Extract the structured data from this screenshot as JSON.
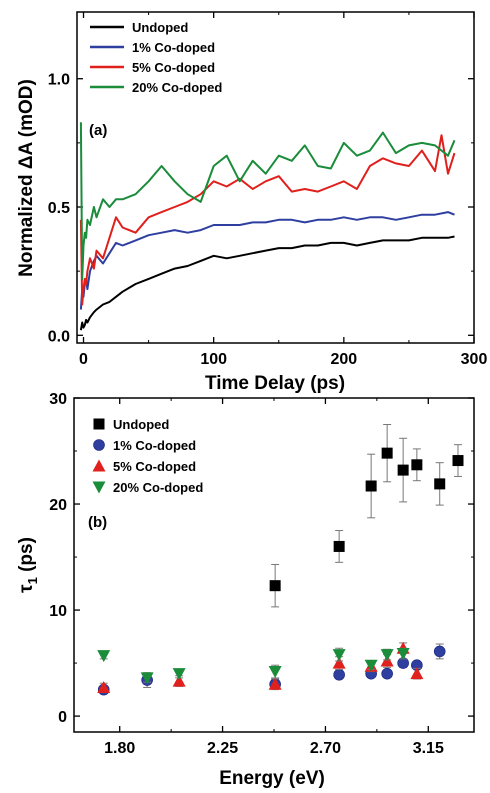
{
  "chart_data": [
    {
      "type": "line",
      "panel_label": "(a)",
      "xlabel": "Time Delay (ps)",
      "ylabel": "Normalized ΔA (mOD)",
      "xlim": [
        -5,
        300
      ],
      "ylim": [
        -0.03,
        1.26
      ],
      "xticks": [
        0,
        100,
        200,
        300
      ],
      "xtick_labels": [
        "0",
        "100",
        "200",
        "300"
      ],
      "yticks": [
        0.0,
        0.5,
        1.0
      ],
      "ytick_labels": [
        "0.0",
        "0.5",
        "1.0"
      ],
      "legend_position": "top-left",
      "series": [
        {
          "name": "Undoped",
          "color": "#000000",
          "x": [
            -2,
            -1,
            0,
            1,
            2,
            3,
            5,
            8,
            10,
            15,
            20,
            25,
            30,
            40,
            50,
            60,
            70,
            80,
            90,
            100,
            110,
            120,
            130,
            140,
            150,
            160,
            170,
            180,
            190,
            200,
            210,
            220,
            230,
            240,
            250,
            260,
            270,
            280,
            285
          ],
          "y": [
            0.02,
            0.05,
            0.03,
            0.04,
            0.06,
            0.05,
            0.07,
            0.09,
            0.1,
            0.12,
            0.13,
            0.15,
            0.17,
            0.2,
            0.22,
            0.24,
            0.26,
            0.27,
            0.29,
            0.31,
            0.3,
            0.31,
            0.32,
            0.33,
            0.34,
            0.34,
            0.35,
            0.35,
            0.36,
            0.36,
            0.35,
            0.36,
            0.37,
            0.37,
            0.37,
            0.38,
            0.38,
            0.38,
            0.385
          ]
        },
        {
          "name": "1% Co-doped",
          "color": "#2e3fa0",
          "x": [
            -2,
            -1,
            0,
            1,
            2,
            3,
            5,
            8,
            10,
            15,
            20,
            25,
            30,
            40,
            50,
            60,
            70,
            80,
            90,
            100,
            110,
            120,
            130,
            140,
            150,
            160,
            170,
            180,
            190,
            200,
            210,
            220,
            230,
            240,
            250,
            260,
            270,
            280,
            285
          ],
          "y": [
            0.1,
            0.18,
            0.15,
            0.2,
            0.22,
            0.18,
            0.25,
            0.29,
            0.31,
            0.28,
            0.32,
            0.36,
            0.35,
            0.37,
            0.39,
            0.4,
            0.41,
            0.4,
            0.41,
            0.43,
            0.43,
            0.43,
            0.44,
            0.44,
            0.45,
            0.45,
            0.44,
            0.45,
            0.45,
            0.46,
            0.45,
            0.46,
            0.46,
            0.45,
            0.46,
            0.47,
            0.47,
            0.48,
            0.47
          ]
        },
        {
          "name": "5% Co-doped",
          "color": "#e0201c",
          "x": [
            -2,
            -1,
            0,
            1,
            2,
            3,
            5,
            8,
            10,
            15,
            20,
            25,
            30,
            40,
            50,
            60,
            70,
            80,
            90,
            100,
            110,
            120,
            130,
            140,
            150,
            160,
            170,
            180,
            190,
            200,
            210,
            220,
            230,
            240,
            250,
            260,
            270,
            275,
            280,
            285
          ],
          "y": [
            0.45,
            0.12,
            0.18,
            0.22,
            0.2,
            0.25,
            0.3,
            0.26,
            0.33,
            0.3,
            0.38,
            0.46,
            0.42,
            0.4,
            0.46,
            0.48,
            0.5,
            0.52,
            0.55,
            0.6,
            0.58,
            0.61,
            0.57,
            0.6,
            0.62,
            0.56,
            0.57,
            0.56,
            0.58,
            0.6,
            0.57,
            0.66,
            0.69,
            0.67,
            0.66,
            0.72,
            0.64,
            0.78,
            0.63,
            0.71
          ]
        },
        {
          "name": "20% Co-doped",
          "color": "#1a8c3a",
          "x": [
            -2,
            -1,
            0,
            1,
            2,
            3,
            5,
            8,
            10,
            15,
            20,
            25,
            30,
            40,
            50,
            60,
            70,
            80,
            90,
            100,
            110,
            120,
            130,
            140,
            150,
            160,
            170,
            180,
            190,
            200,
            210,
            220,
            230,
            240,
            250,
            260,
            270,
            280,
            285
          ],
          "y": [
            0.83,
            0.22,
            0.35,
            0.4,
            0.38,
            0.45,
            0.43,
            0.5,
            0.46,
            0.53,
            0.5,
            0.53,
            0.53,
            0.55,
            0.6,
            0.66,
            0.6,
            0.55,
            0.52,
            0.66,
            0.7,
            0.6,
            0.68,
            0.63,
            0.7,
            0.68,
            0.74,
            0.66,
            0.65,
            0.75,
            0.7,
            0.72,
            0.79,
            0.71,
            0.74,
            0.75,
            0.74,
            0.7,
            0.76
          ]
        }
      ]
    },
    {
      "type": "scatter",
      "panel_label": "(b)",
      "xlabel": "Energy (eV)",
      "ylabel": "τ1 (ps)",
      "ylabel_main": "τ",
      "ylabel_sub": "1",
      "ylabel_rest": " (ps)",
      "xlim": [
        1.6,
        3.35
      ],
      "ylim": [
        -1.5,
        30
      ],
      "xticks": [
        1.8,
        2.25,
        2.7,
        3.15
      ],
      "xtick_labels": [
        "1.80",
        "2.25",
        "2.70",
        "3.15"
      ],
      "yticks": [
        0,
        10,
        20,
        30
      ],
      "ytick_labels": [
        "0",
        "10",
        "20",
        "30"
      ],
      "legend_position": "top-left",
      "series": [
        {
          "name": "Undoped",
          "color": "#000000",
          "marker": "square",
          "x": [
            2.48,
            2.76,
            2.9,
            2.97,
            3.04,
            3.1,
            3.2,
            3.28
          ],
          "y": [
            12.3,
            16.0,
            21.7,
            24.8,
            23.2,
            23.7,
            21.9,
            24.1
          ],
          "err": [
            2.0,
            1.5,
            3.0,
            2.7,
            3.0,
            1.5,
            2.0,
            1.5
          ]
        },
        {
          "name": "1% Co-doped",
          "color": "#2e3fa0",
          "marker": "circle",
          "x": [
            1.73,
            1.92,
            2.48,
            2.76,
            2.9,
            2.97,
            3.04,
            3.1,
            3.2
          ],
          "y": [
            2.5,
            3.4,
            3.0,
            3.9,
            4.0,
            4.0,
            5.0,
            4.8,
            6.1
          ],
          "err": [
            0.3,
            0.7,
            0.4,
            0.3,
            0.3,
            0.3,
            0.4,
            0.3,
            0.7
          ]
        },
        {
          "name": "5% Co-doped",
          "color": "#e0201c",
          "marker": "triangle-up",
          "x": [
            1.73,
            2.06,
            2.48,
            2.76,
            2.9,
            2.97,
            3.04,
            3.1
          ],
          "y": [
            2.7,
            3.3,
            3.0,
            5.0,
            4.7,
            5.2,
            6.4,
            4.0
          ],
          "err": [
            0.4,
            0.5,
            0.5,
            0.6,
            0.5,
            0.6,
            0.5,
            0.5
          ]
        },
        {
          "name": "20% Co-doped",
          "color": "#1a8c3a",
          "marker": "triangle-down",
          "x": [
            1.73,
            1.92,
            2.06,
            2.48,
            2.76,
            2.9,
            2.97,
            3.04
          ],
          "y": [
            5.7,
            3.6,
            4.0,
            4.2,
            5.8,
            4.8,
            5.8,
            5.9
          ],
          "err": [
            0.3,
            0.4,
            0.4,
            0.6,
            0.6,
            0.4,
            0.5,
            0.5
          ]
        }
      ]
    }
  ]
}
